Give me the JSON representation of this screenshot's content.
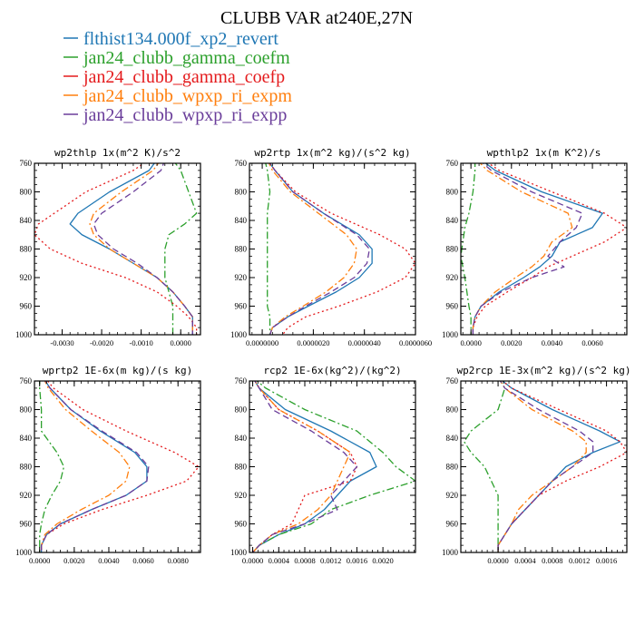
{
  "figure": {
    "title": "CLUBB VAR at240E,27N"
  },
  "legend": [
    {
      "name": "flthist134.000f_xp2_revert",
      "color": "#1f77b4",
      "dash": "solid"
    },
    {
      "name": "jan24_clubb_gamma_coefm",
      "color": "#2ca02c",
      "dash": "dashdot"
    },
    {
      "name": "jan24_clubb_gamma_coefp",
      "color": "#e41a1c",
      "dash": "dot"
    },
    {
      "name": "jan24_clubb_wpxp_ri_expm",
      "color": "#ff7f0e",
      "dash": "dashdot"
    },
    {
      "name": "jan24_clubb_wpxp_ri_expp",
      "color": "#6a3d9a",
      "dash": "dash"
    }
  ],
  "chart_data": [
    {
      "type": "line",
      "title": "wp2thlp  1x(m^2 K)/s^2",
      "xlim": [
        -0.0037,
        0.0005
      ],
      "ylim": [
        760,
        1000
      ],
      "xticks": [
        -0.003,
        -0.002,
        -0.001,
        0.0
      ],
      "xticklabels": [
        "-0.0030",
        "-0.0020",
        "-0.0010",
        "0.0000"
      ],
      "yticks": [
        760,
        800,
        840,
        880,
        920,
        960,
        1000
      ],
      "yticklabels": [
        "760",
        "800",
        "840",
        "880",
        "920",
        "960",
        "1000"
      ],
      "y": [
        755,
        770,
        800,
        830,
        845,
        860,
        880,
        900,
        920,
        940,
        960,
        975,
        990,
        1000
      ],
      "series": [
        {
          "name": "flthist134.000f_xp2_revert",
          "x": [
            -0.0006,
            -0.0008,
            -0.0018,
            -0.0026,
            -0.0028,
            -0.0025,
            -0.0018,
            -0.0012,
            -0.0006,
            -0.0002,
            0.0001,
            0.0003,
            0.0003,
            0.0003
          ]
        },
        {
          "name": "jan24_clubb_gamma_coefm",
          "x": [
            -0.0002,
            0.0,
            0.0002,
            0.0004,
            0.0001,
            -0.0003,
            -0.0004,
            -0.0004,
            -0.0004,
            -0.0003,
            -0.0002,
            -0.0002,
            -0.0002,
            -0.0002
          ]
        },
        {
          "name": "jan24_clubb_gamma_coefp",
          "x": [
            -0.0008,
            -0.0012,
            -0.0024,
            -0.0032,
            -0.0036,
            -0.0037,
            -0.0033,
            -0.0025,
            -0.0014,
            -0.0006,
            -0.0001,
            0.0002,
            0.0004,
            0.0004
          ]
        },
        {
          "name": "jan24_clubb_wpxp_ri_expm",
          "x": [
            -0.0005,
            -0.0007,
            -0.0015,
            -0.0022,
            -0.0023,
            -0.0022,
            -0.0018,
            -0.0012,
            -0.0006,
            -0.0002,
            0.0001,
            0.0003,
            0.0003,
            0.0003
          ]
        },
        {
          "name": "jan24_clubb_wpxp_ri_expp",
          "x": [
            -0.0004,
            -0.0005,
            -0.0012,
            -0.002,
            -0.0022,
            -0.0021,
            -0.0017,
            -0.0011,
            -0.0006,
            -0.0002,
            0.0001,
            0.0003,
            0.0003,
            0.0003
          ]
        }
      ]
    },
    {
      "type": "line",
      "title": "wp2rtp  1x(m^2 kg)/(s^2 kg)",
      "xlim": [
        -5e-07,
        6e-06
      ],
      "ylim": [
        760,
        1000
      ],
      "xticks": [
        0.0,
        2e-06,
        4e-06,
        6e-06
      ],
      "xticklabels": [
        "0.0000000",
        "0.0000020",
        "0.0000040",
        "0.0000060"
      ],
      "yticks": [
        760,
        800,
        840,
        880,
        920,
        960,
        1000
      ],
      "yticklabels": [
        "760",
        "800",
        "840",
        "880",
        "920",
        "960",
        "1000"
      ],
      "y": [
        755,
        770,
        800,
        830,
        860,
        880,
        900,
        920,
        940,
        960,
        975,
        990,
        1000
      ],
      "series": [
        {
          "name": "flthist134.000f_xp2_revert",
          "x": [
            2e-07,
            5e-07,
            1.2e-06,
            2.4e-06,
            3.8e-06,
            4.3e-06,
            4.3e-06,
            3.8e-06,
            2.9e-06,
            1.8e-06,
            1e-06,
            4e-07,
            3e-07
          ]
        },
        {
          "name": "jan24_clubb_gamma_coefm",
          "x": [
            1e-07,
            2e-07,
            3e-07,
            2e-07,
            2e-07,
            2e-07,
            2e-07,
            2e-07,
            2e-07,
            2e-07,
            3e-07,
            3e-07,
            3e-07
          ]
        },
        {
          "name": "jan24_clubb_gamma_coefp",
          "x": [
            2e-07,
            5e-07,
            1.3e-06,
            2.7e-06,
            4.6e-06,
            5.6e-06,
            6e-06,
            5.6e-06,
            4.5e-06,
            3e-06,
            1.7e-06,
            1e-06,
            8e-07
          ]
        },
        {
          "name": "jan24_clubb_wpxp_ri_expm",
          "x": [
            2e-07,
            4e-07,
            1.1e-06,
            2.2e-06,
            3.3e-06,
            3.7e-06,
            3.6e-06,
            3.2e-06,
            2.5e-06,
            1.6e-06,
            9e-07,
            4e-07,
            3e-07
          ]
        },
        {
          "name": "jan24_clubb_wpxp_ri_expp",
          "x": [
            2e-07,
            5e-07,
            1.2e-06,
            2.4e-06,
            3.7e-06,
            4.2e-06,
            4.1e-06,
            3.6e-06,
            2.7e-06,
            1.7e-06,
            1e-06,
            4e-07,
            3e-07
          ]
        }
      ]
    },
    {
      "type": "line",
      "title": "wpthlp2  1x(m K^2)/s",
      "xlim": [
        -0.0005,
        0.0077
      ],
      "ylim": [
        760,
        1000
      ],
      "xticks": [
        0.0,
        0.002,
        0.004,
        0.006
      ],
      "xticklabels": [
        "0.0000",
        "0.0020",
        "0.0040",
        "0.0060"
      ],
      "yticks": [
        760,
        800,
        840,
        880,
        920,
        960,
        1000
      ],
      "yticklabels": [
        "760",
        "800",
        "840",
        "880",
        "920",
        "960",
        "1000"
      ],
      "y": [
        755,
        770,
        800,
        830,
        850,
        870,
        890,
        905,
        920,
        940,
        960,
        975,
        990,
        1000
      ],
      "series": [
        {
          "name": "flthist134.000f_xp2_revert",
          "x": [
            0.0005,
            0.0012,
            0.0035,
            0.0065,
            0.006,
            0.0044,
            0.004,
            0.0034,
            0.0026,
            0.0014,
            0.0005,
            0.0002,
            0.0001,
            0.0001
          ]
        },
        {
          "name": "jan24_clubb_gamma_coefm",
          "x": [
            0.0002,
            0.0002,
            0.0001,
            -0.0001,
            -0.0003,
            -0.0004,
            -0.0005,
            -0.0004,
            -0.0003,
            -0.0002,
            -0.0001,
            0.0,
            0.0,
            0.0
          ]
        },
        {
          "name": "jan24_clubb_gamma_coefp",
          "x": [
            0.0006,
            0.0014,
            0.004,
            0.0066,
            0.0077,
            0.0066,
            0.005,
            0.0038,
            0.003,
            0.0018,
            0.0007,
            0.0003,
            0.0001,
            0.0001
          ]
        },
        {
          "name": "jan24_clubb_wpxp_ri_expm",
          "x": [
            0.0003,
            0.0008,
            0.0025,
            0.0048,
            0.005,
            0.004,
            0.0036,
            0.003,
            0.0022,
            0.0012,
            0.0005,
            0.0002,
            0.0001,
            0.0001
          ]
        },
        {
          "name": "jan24_clubb_wpxp_ri_expp",
          "x": [
            0.0004,
            0.001,
            0.003,
            0.0055,
            0.0052,
            0.0044,
            0.0038,
            0.0046,
            0.003,
            0.0015,
            0.0005,
            0.0002,
            0.0001,
            0.0001
          ]
        }
      ]
    },
    {
      "type": "line",
      "title": "wprtp2  1E-6x(m kg)/(s kg)",
      "xlim": [
        -0.0003,
        0.0093
      ],
      "ylim": [
        760,
        1000
      ],
      "xticks": [
        0.0,
        0.002,
        0.004,
        0.006,
        0.008
      ],
      "xticklabels": [
        "0.0000",
        "0.0020",
        "0.0040",
        "0.0060",
        "0.0080"
      ],
      "yticks": [
        760,
        800,
        840,
        880,
        920,
        960,
        1000
      ],
      "yticklabels": [
        "760",
        "800",
        "840",
        "880",
        "920",
        "960",
        "1000"
      ],
      "y": [
        755,
        770,
        800,
        830,
        860,
        880,
        900,
        920,
        940,
        960,
        975,
        990,
        1000
      ],
      "series": [
        {
          "name": "flthist134.000f_xp2_revert",
          "x": [
            0.0002,
            0.0006,
            0.0018,
            0.0035,
            0.0055,
            0.0062,
            0.0062,
            0.005,
            0.003,
            0.0012,
            0.0004,
            0.0001,
            0.0001
          ]
        },
        {
          "name": "jan24_clubb_gamma_coefm",
          "x": [
            0.0,
            0.0,
            0.0001,
            0.0001,
            0.001,
            0.0014,
            0.0012,
            0.0007,
            0.0003,
            0.0001,
            0.0,
            0.0,
            0.0
          ]
        },
        {
          "name": "jan24_clubb_gamma_coefp",
          "x": [
            0.0003,
            0.0008,
            0.0025,
            0.005,
            0.0078,
            0.0092,
            0.0085,
            0.0062,
            0.0036,
            0.0014,
            0.0004,
            0.0001,
            0.0001
          ]
        },
        {
          "name": "jan24_clubb_wpxp_ri_expm",
          "x": [
            0.0002,
            0.0005,
            0.0015,
            0.003,
            0.0046,
            0.0052,
            0.005,
            0.004,
            0.0024,
            0.001,
            0.0003,
            0.0001,
            0.0001
          ]
        },
        {
          "name": "jan24_clubb_wpxp_ri_expp",
          "x": [
            0.0002,
            0.0006,
            0.0018,
            0.0036,
            0.0056,
            0.0063,
            0.0062,
            0.005,
            0.003,
            0.0012,
            0.0004,
            0.0001,
            0.0001
          ]
        }
      ]
    },
    {
      "type": "line",
      "title": "rcp2  1E-6x(kg^2)/(kg^2)",
      "xlim": [
        -5e-05,
        0.0025
      ],
      "ylim": [
        760,
        1000
      ],
      "xticks": [
        0.0,
        0.0004,
        0.0008,
        0.0012,
        0.0016,
        0.002
      ],
      "xticklabels": [
        "0.0000",
        "0.0004",
        "0.0008",
        "0.0012",
        "0.0016",
        "0.0020"
      ],
      "yticks": [
        760,
        800,
        840,
        880,
        920,
        960,
        1000
      ],
      "yticklabels": [
        "760",
        "800",
        "840",
        "880",
        "920",
        "960",
        "1000"
      ],
      "y": [
        755,
        770,
        800,
        830,
        860,
        880,
        900,
        920,
        940,
        960,
        975,
        990,
        1000
      ],
      "series": [
        {
          "name": "flthist134.000f_xp2_revert",
          "x": [
            0.0,
            0.0001,
            0.0005,
            0.0012,
            0.0018,
            0.0019,
            0.0015,
            0.0013,
            0.0011,
            0.0008,
            0.0004,
            0.0001,
            0.0
          ]
        },
        {
          "name": "jan24_clubb_gamma_coefm",
          "x": [
            0.0,
            0.0002,
            0.0008,
            0.0016,
            0.002,
            0.0022,
            0.0025,
            0.0018,
            0.0012,
            0.0009,
            0.0004,
            0.0001,
            0.0
          ]
        },
        {
          "name": "jan24_clubb_gamma_coefp",
          "x": [
            0.0,
            0.0001,
            0.0004,
            0.001,
            0.0015,
            0.0016,
            0.0015,
            0.0008,
            0.0007,
            0.0006,
            0.0003,
            0.0001,
            0.0
          ]
        },
        {
          "name": "jan24_clubb_wpxp_ri_expm",
          "x": [
            0.0,
            0.0001,
            0.0004,
            0.001,
            0.0015,
            0.0014,
            0.0013,
            0.0012,
            0.001,
            0.0007,
            0.0003,
            0.0001,
            0.0
          ]
        },
        {
          "name": "jan24_clubb_wpxp_ri_expp",
          "x": [
            0.0,
            0.0001,
            0.0003,
            0.0009,
            0.0014,
            0.0016,
            0.0014,
            0.0012,
            0.0013,
            0.0008,
            0.0003,
            0.0001,
            0.0
          ]
        }
      ]
    },
    {
      "type": "line",
      "title": "wp2rcp  1E-3x(m^2 kg)/(s^2 kg)",
      "xlim": [
        -0.00055,
        0.0019
      ],
      "ylim": [
        760,
        1000
      ],
      "xticks": [
        0.0,
        0.0004,
        0.0008,
        0.0012,
        0.0016
      ],
      "xticklabels": [
        "0.0000",
        "0.0004",
        "0.0008",
        "0.0012",
        "0.0016"
      ],
      "yticks": [
        760,
        800,
        840,
        880,
        920,
        960,
        1000
      ],
      "yticklabels": [
        "760",
        "800",
        "840",
        "880",
        "920",
        "960",
        "1000"
      ],
      "y": [
        755,
        770,
        800,
        830,
        845,
        860,
        880,
        900,
        920,
        940,
        960,
        975,
        990,
        1000
      ],
      "series": [
        {
          "name": "flthist134.000f_xp2_revert",
          "x": [
            0.0,
            0.0002,
            0.0008,
            0.0015,
            0.0018,
            0.0014,
            0.001,
            0.0008,
            0.0006,
            0.0004,
            0.0002,
            0.0001,
            0.0,
            0.0
          ]
        },
        {
          "name": "jan24_clubb_gamma_coefm",
          "x": [
            0.0,
            0.0001,
            0.0,
            -0.0004,
            -0.0005,
            -0.0004,
            -0.0002,
            -0.0001,
            0.0,
            0.0,
            0.0,
            0.0,
            0.0,
            0.0
          ]
        },
        {
          "name": "jan24_clubb_gamma_coefp",
          "x": [
            0.0,
            0.0002,
            0.0009,
            0.0016,
            0.0018,
            0.0019,
            0.0015,
            0.001,
            0.0006,
            0.0004,
            0.0002,
            0.0001,
            0.0,
            0.0
          ]
        },
        {
          "name": "jan24_clubb_wpxp_ri_expm",
          "x": [
            0.0,
            0.0001,
            0.0005,
            0.0011,
            0.0013,
            0.0013,
            0.0011,
            0.0008,
            0.0005,
            0.0003,
            0.0002,
            0.0001,
            0.0,
            0.0
          ]
        },
        {
          "name": "jan24_clubb_wpxp_ri_expp",
          "x": [
            0.0,
            0.0001,
            0.0006,
            0.0012,
            0.0014,
            0.0014,
            0.0011,
            0.0008,
            0.0006,
            0.0004,
            0.0002,
            0.0001,
            0.0,
            0.0
          ]
        }
      ]
    }
  ]
}
